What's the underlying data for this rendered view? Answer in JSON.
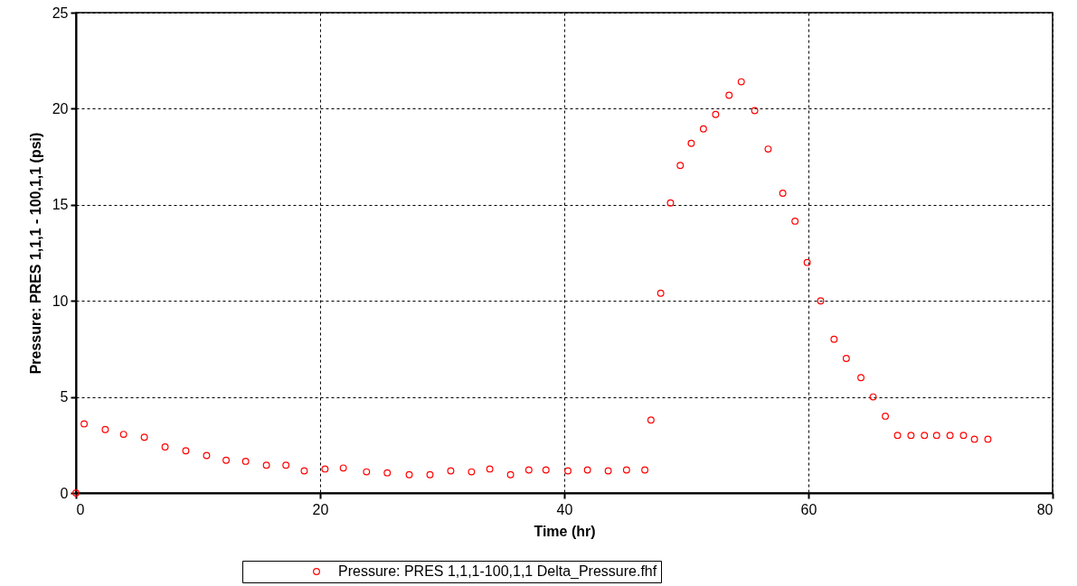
{
  "chart_data": {
    "type": "scatter",
    "xlabel": "Time (hr)",
    "ylabel": "Pressure: PRES 1,1,1 - 100,1,1 (psi)",
    "x": [
      0,
      0.67,
      2.4,
      3.9,
      5.6,
      7.3,
      9.0,
      10.7,
      12.3,
      13.9,
      15.6,
      17.2,
      18.7,
      20.4,
      21.9,
      23.8,
      25.5,
      27.3,
      29.0,
      30.7,
      32.4,
      33.9,
      35.6,
      37.1,
      38.5,
      40.3,
      41.9,
      43.6,
      45.1,
      46.6,
      47.1,
      47.9,
      48.7,
      49.5,
      50.4,
      51.4,
      52.4,
      53.5,
      54.5,
      55.6,
      56.7,
      57.9,
      58.9,
      59.9,
      61.0,
      62.1,
      63.1,
      64.3,
      65.3,
      66.3,
      67.3,
      68.4,
      69.5,
      70.5,
      71.6,
      72.7,
      73.6,
      74.7
    ],
    "series": [
      {
        "name": "Pressure: PRES 1,1,1-100,1,1 Delta_Pressure.fhf",
        "color": "#ff0000",
        "values": [
          0,
          3.6,
          3.3,
          3.05,
          2.9,
          2.4,
          2.2,
          1.95,
          1.7,
          1.65,
          1.45,
          1.45,
          1.15,
          1.25,
          1.3,
          1.1,
          1.05,
          0.95,
          0.95,
          1.15,
          1.1,
          1.25,
          0.95,
          1.2,
          1.2,
          1.15,
          1.2,
          1.15,
          1.2,
          1.2,
          3.8,
          10.4,
          15.1,
          17.05,
          18.2,
          18.95,
          19.7,
          20.7,
          21.4,
          19.9,
          17.9,
          15.6,
          14.15,
          12.0,
          10.0,
          8.0,
          7.0,
          6.0,
          5.0,
          4.0,
          3.0,
          3.0,
          3.0,
          3.0,
          3.0,
          3.0,
          2.8,
          2.8
        ]
      }
    ],
    "xlim": [
      0,
      80
    ],
    "xticks": [
      0,
      20,
      40,
      60,
      80
    ],
    "ylim": [
      0,
      25
    ],
    "yticks": [
      0,
      5,
      10,
      15,
      20,
      25
    ],
    "grid": true,
    "legend": "bottom",
    "marker": "circle"
  }
}
